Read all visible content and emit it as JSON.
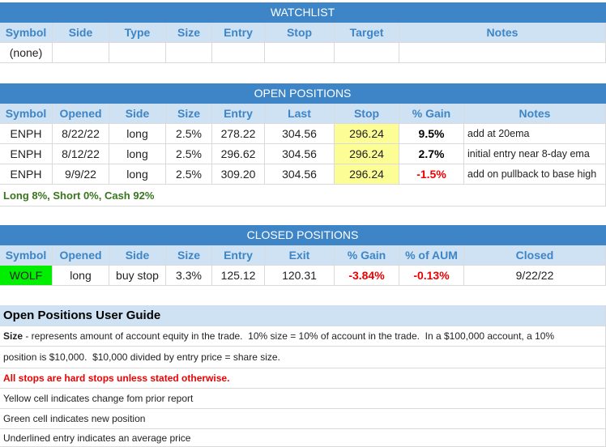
{
  "watchlist": {
    "title": "WATCHLIST",
    "headers": [
      "Symbol",
      "Side",
      "Type",
      "Size",
      "Entry",
      "Stop",
      "Target",
      "Notes"
    ],
    "rows": [
      [
        "(none)"
      ]
    ]
  },
  "open_positions": {
    "title": "OPEN POSITIONS",
    "headers": [
      "Symbol",
      "Opened",
      "Side",
      "Size",
      "Entry",
      "Last",
      "Stop",
      "% Gain",
      "Notes"
    ],
    "rows": [
      [
        "ENPH",
        "8/22/22",
        "long",
        "2.5%",
        "278.22",
        "304.56",
        "296.24",
        "9.5%",
        "add at 20ema"
      ],
      [
        "ENPH",
        "8/12/22",
        "long",
        "2.5%",
        "296.62",
        "304.56",
        "296.24",
        "2.7%",
        "initial entry near 8-day ema"
      ],
      [
        "ENPH",
        "9/9/22",
        "long",
        "2.5%",
        "309.20",
        "304.56",
        "296.24",
        "-1.5%",
        "add on pullback to base high"
      ]
    ],
    "summary": "Long 8%, Short 0%, Cash 92%"
  },
  "closed_positions": {
    "title": "CLOSED POSITIONS",
    "headers": [
      "Symbol",
      "Opened",
      "Side",
      "Size",
      "Entry",
      "Exit",
      "% Gain",
      "% of AUM",
      "Closed"
    ],
    "rows": [
      [
        "WOLF",
        "long",
        "buy stop",
        "3.3%",
        "125.12",
        "120.31",
        "-3.84%",
        "-0.13%",
        "9/22/22"
      ]
    ]
  },
  "guide": {
    "title": "Open Positions User Guide",
    "lines": [
      {
        "term": "Size",
        "text": " - represents amount of account equity in the trade.  10% size = 10% of account in the trade.  In a $100,000 account, a 10%"
      },
      {
        "text": "position is $10,000.  $10,000 divided by entry price = share size."
      },
      {
        "text": "All stops are hard stops unless stated otherwise."
      },
      {
        "text": "Yellow cell indicates change fom prior report"
      },
      {
        "text": "Green cell indicates new position"
      },
      {
        "text": "Underlined entry indicates an average price"
      }
    ]
  }
}
